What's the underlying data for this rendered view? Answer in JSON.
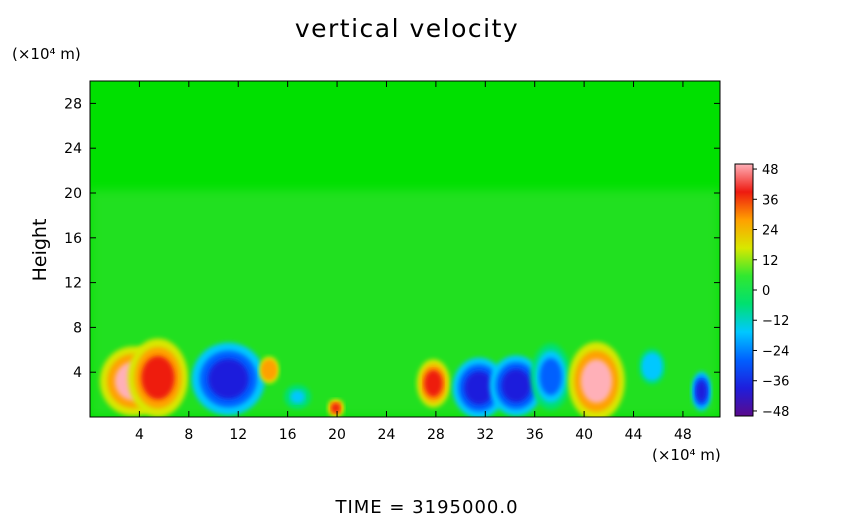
{
  "chart_data": {
    "type": "heatmap",
    "title": "vertical velocity",
    "ylabel": "Height",
    "y_unit": "(×10⁴ m)",
    "x_unit": "(×10⁴ m)",
    "xlim": [
      0,
      51
    ],
    "ylim": [
      0,
      30
    ],
    "x_ticks": [
      4,
      8,
      12,
      16,
      20,
      24,
      28,
      32,
      36,
      40,
      44,
      48
    ],
    "y_ticks": [
      4,
      8,
      12,
      16,
      20,
      24,
      28
    ],
    "colorbar": {
      "min": -50,
      "max": 50,
      "ticks": [
        48,
        36,
        24,
        12,
        0,
        -12,
        -24,
        -36,
        -48
      ],
      "tick_labels": [
        "48",
        "36",
        "24",
        "12",
        "0",
        "−12",
        "−24",
        "−36",
        "−48"
      ],
      "colors": [
        "#5a0a8c",
        "#1e1edc",
        "#0060ff",
        "#00c8ff",
        "#00e070",
        "#30e830",
        "#d8e800",
        "#ffa000",
        "#ee1a10",
        "#ffb0b8"
      ]
    },
    "features": [
      {
        "x": 3.5,
        "y": 3.2,
        "rx": 2.0,
        "ry": 2.3,
        "value": 45
      },
      {
        "x": 5.5,
        "y": 3.5,
        "rx": 1.8,
        "ry": 2.6,
        "value": 40
      },
      {
        "x": 11.2,
        "y": 3.4,
        "rx": 2.2,
        "ry": 2.4,
        "value": -40
      },
      {
        "x": 14.5,
        "y": 4.2,
        "rx": 0.6,
        "ry": 0.9,
        "value": 32
      },
      {
        "x": 16.8,
        "y": 1.8,
        "rx": 0.8,
        "ry": 0.8,
        "value": -12
      },
      {
        "x": 19.9,
        "y": 0.8,
        "rx": 0.5,
        "ry": 0.6,
        "value": 36
      },
      {
        "x": 27.8,
        "y": 3.0,
        "rx": 1.0,
        "ry": 1.6,
        "value": 42
      },
      {
        "x": 31.5,
        "y": 2.6,
        "rx": 1.6,
        "ry": 2.0,
        "value": -36
      },
      {
        "x": 34.5,
        "y": 2.8,
        "rx": 1.6,
        "ry": 2.0,
        "value": -36
      },
      {
        "x": 37.3,
        "y": 3.6,
        "rx": 1.2,
        "ry": 2.2,
        "value": -30
      },
      {
        "x": 41.0,
        "y": 3.2,
        "rx": 1.7,
        "ry": 2.6,
        "value": 47
      },
      {
        "x": 45.5,
        "y": 4.5,
        "rx": 0.8,
        "ry": 1.2,
        "value": -20
      },
      {
        "x": 49.5,
        "y": 2.3,
        "rx": 0.6,
        "ry": 1.3,
        "value": -36
      }
    ]
  },
  "time_label": "TIME = 3195000.0"
}
